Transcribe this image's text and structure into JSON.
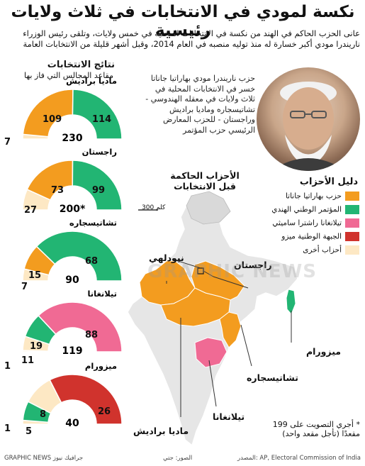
{
  "title": "نكسة لمودي في الانتخابات في ثلاث ولايات رئيسية",
  "subtitle": "عانى الحزب الحاكم في الهند من نكسة في الانتخابات المحلية في خمس ولايات، وتلقى رئيس الوزراء ناريندرا مودي أكبر خسارة له منذ توليه منصبه في العام 2014، وقبل أشهر قليلة من الانتخابات العامة",
  "results_title": "نتائج الانتخابات",
  "results_subtitle": "مقاعد المجالس التي فاز بها",
  "modi_caption": "حزب ناريندرا مودي بهاراتيا جاناتا خسر في الانتخابات المحلية في ثلاث ولايات في معقله الهندوسي - تشاتيسجاره وماديا براديش وراجستان - للحزب المعارض الرئيسي حزب المؤتمر",
  "ruling_title": "الأحزاب الحاكمة قبل الانتخابات",
  "scale_label": "300 كلم",
  "colors": {
    "bjp": "#f39c1f",
    "inc": "#22b573",
    "trs": "#f06a94",
    "mnf": "#d0332d",
    "other": "#fde8c4"
  },
  "legend": {
    "title": "دليل الأحزاب",
    "items": [
      {
        "label": "حزب بهاراتيا جاناتا",
        "color": "#f39c1f"
      },
      {
        "label": "المؤتمر الوطني الهندي",
        "color": "#22b573"
      },
      {
        "label": "تيلانغانا راشترا ساميثي",
        "color": "#f06a94"
      },
      {
        "label": "الجبهة الوطنية ميزو",
        "color": "#d0332d"
      },
      {
        "label": "أحزاب أخرى",
        "color": "#fde8c4"
      }
    ]
  },
  "states": [
    {
      "name": "ماديا براديش",
      "total": "230",
      "segments": [
        {
          "party": "other",
          "seats": 7
        },
        {
          "party": "bjp",
          "seats": 109
        },
        {
          "party": "inc",
          "seats": 114
        }
      ]
    },
    {
      "name": "راجستان",
      "total": "200*",
      "segments": [
        {
          "party": "other",
          "seats": 27
        },
        {
          "party": "bjp",
          "seats": 73
        },
        {
          "party": "inc",
          "seats": 99
        }
      ]
    },
    {
      "name": "تشاتيسجاره",
      "total": "90",
      "segments": [
        {
          "party": "other",
          "seats": 7
        },
        {
          "party": "bjp",
          "seats": 15
        },
        {
          "party": "inc",
          "seats": 68
        }
      ]
    },
    {
      "name": "تيلانغانا",
      "total": "119",
      "segments": [
        {
          "party": "other",
          "seats": 1
        },
        {
          "party": "other",
          "seats": 11
        },
        {
          "party": "inc",
          "seats": 19
        },
        {
          "party": "trs",
          "seats": 88
        }
      ]
    },
    {
      "name": "ميزورام",
      "total": "40",
      "segments": [
        {
          "party": "other",
          "seats": 1
        },
        {
          "party": "inc",
          "seats": 5
        },
        {
          "party": "other",
          "seats": 8
        },
        {
          "party": "mnf",
          "seats": 26
        }
      ]
    }
  ],
  "map_labels": {
    "delhi": "نيودلهي",
    "rajasthan": "راجستان",
    "mizoram": "ميزورام",
    "chhattisgarh": "تشاتيسجاره",
    "telangana": "تيلانغانا",
    "mp": "ماديا براديش"
  },
  "seats_note": "* أجري التصويت على 199 مقعدًا (تأجل مقعد واحد)",
  "footer": {
    "source": "المصدر: AP, Electoral Commission of India",
    "photo": "الصور: جتي",
    "brand": "GRAPHIC NEWS جرافيك نيوز"
  },
  "watermark": "GRAPHIC NEWS"
}
